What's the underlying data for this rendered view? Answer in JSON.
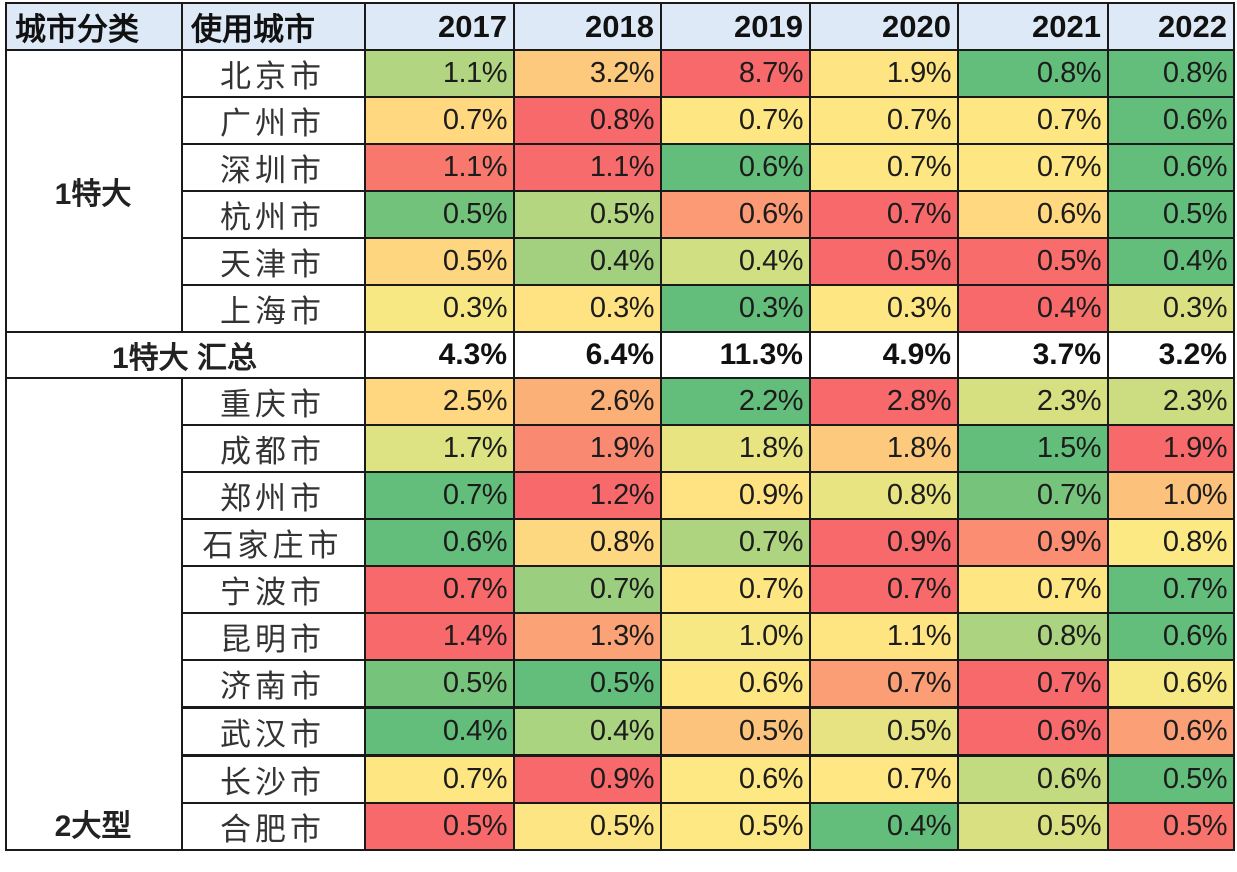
{
  "header": {
    "category": "城市分类",
    "city": "使用城市",
    "years": [
      "2017",
      "2018",
      "2019",
      "2020",
      "2021",
      "2022"
    ]
  },
  "colors": {
    "header_bg": "#dde9f6",
    "dark_green": "#63be7b",
    "green": "#76c37c",
    "light_green": "#a9d27f",
    "yellow_green": "#d3e080",
    "yellow": "#fee783",
    "light_orange": "#fdd17f",
    "orange": "#fba777",
    "salmon": "#f98a70",
    "red": "#f8696b"
  },
  "groups": [
    {
      "category": "1特大",
      "rows": [
        {
          "city": "北京市",
          "values": [
            "1.1%",
            "3.2%",
            "8.7%",
            "1.9%",
            "0.8%",
            "0.8%"
          ],
          "colors": [
            "#b1d580",
            "#fdc97d",
            "#f8696b",
            "#fee482",
            "#63be7b",
            "#63be7b"
          ]
        },
        {
          "city": "广州市",
          "values": [
            "0.7%",
            "0.8%",
            "0.7%",
            "0.7%",
            "0.7%",
            "0.6%"
          ],
          "colors": [
            "#ffd880",
            "#f8696b",
            "#fee783",
            "#fee783",
            "#fee783",
            "#63be7b"
          ]
        },
        {
          "city": "深圳市",
          "values": [
            "1.1%",
            "1.1%",
            "0.6%",
            "0.7%",
            "0.7%",
            "0.6%"
          ],
          "colors": [
            "#f8786e",
            "#f86b6c",
            "#63be7b",
            "#fee783",
            "#fee783",
            "#63be7b"
          ]
        },
        {
          "city": "杭州市",
          "values": [
            "0.5%",
            "0.5%",
            "0.6%",
            "0.7%",
            "0.6%",
            "0.5%"
          ],
          "colors": [
            "#73c27c",
            "#b4d680",
            "#fb9a75",
            "#f8696b",
            "#ffd880",
            "#63be7b"
          ]
        },
        {
          "city": "天津市",
          "values": [
            "0.5%",
            "0.4%",
            "0.4%",
            "0.5%",
            "0.5%",
            "0.4%"
          ],
          "colors": [
            "#fed680",
            "#a2d07f",
            "#d0df81",
            "#f8696b",
            "#f86d6c",
            "#63be7b"
          ]
        },
        {
          "city": "上海市",
          "values": [
            "0.3%",
            "0.3%",
            "0.3%",
            "0.3%",
            "0.4%",
            "0.3%"
          ],
          "colors": [
            "#f7e883",
            "#ffe382",
            "#63be7b",
            "#fee783",
            "#f8696b",
            "#dbe182"
          ]
        }
      ],
      "summary": {
        "label": "1特大 汇总",
        "values": [
          "4.3%",
          "6.4%",
          "11.3%",
          "4.9%",
          "3.7%",
          "3.2%"
        ]
      }
    },
    {
      "category": "2大型",
      "rows": [
        {
          "city": "重庆市",
          "values": [
            "2.5%",
            "2.6%",
            "2.2%",
            "2.8%",
            "2.3%",
            "2.3%"
          ],
          "colors": [
            "#ffd780",
            "#fbb077",
            "#63be7b",
            "#f8696b",
            "#d6e081",
            "#cbdd80"
          ]
        },
        {
          "city": "成都市",
          "values": [
            "1.7%",
            "1.9%",
            "1.8%",
            "1.8%",
            "1.5%",
            "1.9%"
          ],
          "colors": [
            "#dde282",
            "#f98970",
            "#e9e482",
            "#fdc97d",
            "#63be7b",
            "#f8696b"
          ]
        },
        {
          "city": "郑州市",
          "values": [
            "0.7%",
            "1.2%",
            "0.9%",
            "0.8%",
            "0.7%",
            "1.0%"
          ],
          "colors": [
            "#63be7b",
            "#f8696b",
            "#ffe382",
            "#e9e482",
            "#76c37c",
            "#fcc17b"
          ]
        },
        {
          "city": "石家庄市",
          "values": [
            "0.6%",
            "0.8%",
            "0.7%",
            "0.9%",
            "0.9%",
            "0.8%"
          ],
          "colors": [
            "#63be7b",
            "#fed880",
            "#aed480",
            "#f8696b",
            "#fa8d72",
            "#fce983"
          ]
        },
        {
          "city": "宁波市",
          "values": [
            "0.7%",
            "0.7%",
            "0.7%",
            "0.7%",
            "0.7%",
            "0.7%"
          ],
          "colors": [
            "#f8696b",
            "#9bce7f",
            "#fee783",
            "#f8696b",
            "#fee783",
            "#63be7b"
          ]
        },
        {
          "city": "昆明市",
          "values": [
            "1.4%",
            "1.3%",
            "1.0%",
            "1.1%",
            "0.8%",
            "0.6%"
          ],
          "colors": [
            "#f8696b",
            "#fba276",
            "#f7e883",
            "#ffe582",
            "#acd480",
            "#63be7b"
          ]
        },
        {
          "city": "济南市",
          "values": [
            "0.5%",
            "0.5%",
            "0.6%",
            "0.7%",
            "0.7%",
            "0.6%"
          ],
          "colors": [
            "#76c37c",
            "#63be7b",
            "#fee783",
            "#fb9d75",
            "#f8696b",
            "#f6e883"
          ]
        },
        {
          "city": "武汉市",
          "values": [
            "0.4%",
            "0.4%",
            "0.5%",
            "0.5%",
            "0.6%",
            "0.6%"
          ],
          "colors": [
            "#63be7b",
            "#aad480",
            "#fcc37c",
            "#e8e382",
            "#f8696b",
            "#fa9f76"
          ]
        },
        {
          "city": "长沙市",
          "values": [
            "0.7%",
            "0.9%",
            "0.6%",
            "0.7%",
            "0.6%",
            "0.5%"
          ],
          "colors": [
            "#fee783",
            "#f8696b",
            "#fde883",
            "#ffe783",
            "#c2da80",
            "#63be7b"
          ]
        },
        {
          "city": "合肥市",
          "values": [
            "0.5%",
            "0.5%",
            "0.5%",
            "0.4%",
            "0.5%",
            "0.5%"
          ],
          "colors": [
            "#f8696b",
            "#fee583",
            "#fee883",
            "#63be7b",
            "#d8e081",
            "#f8736c"
          ]
        }
      ]
    }
  ]
}
